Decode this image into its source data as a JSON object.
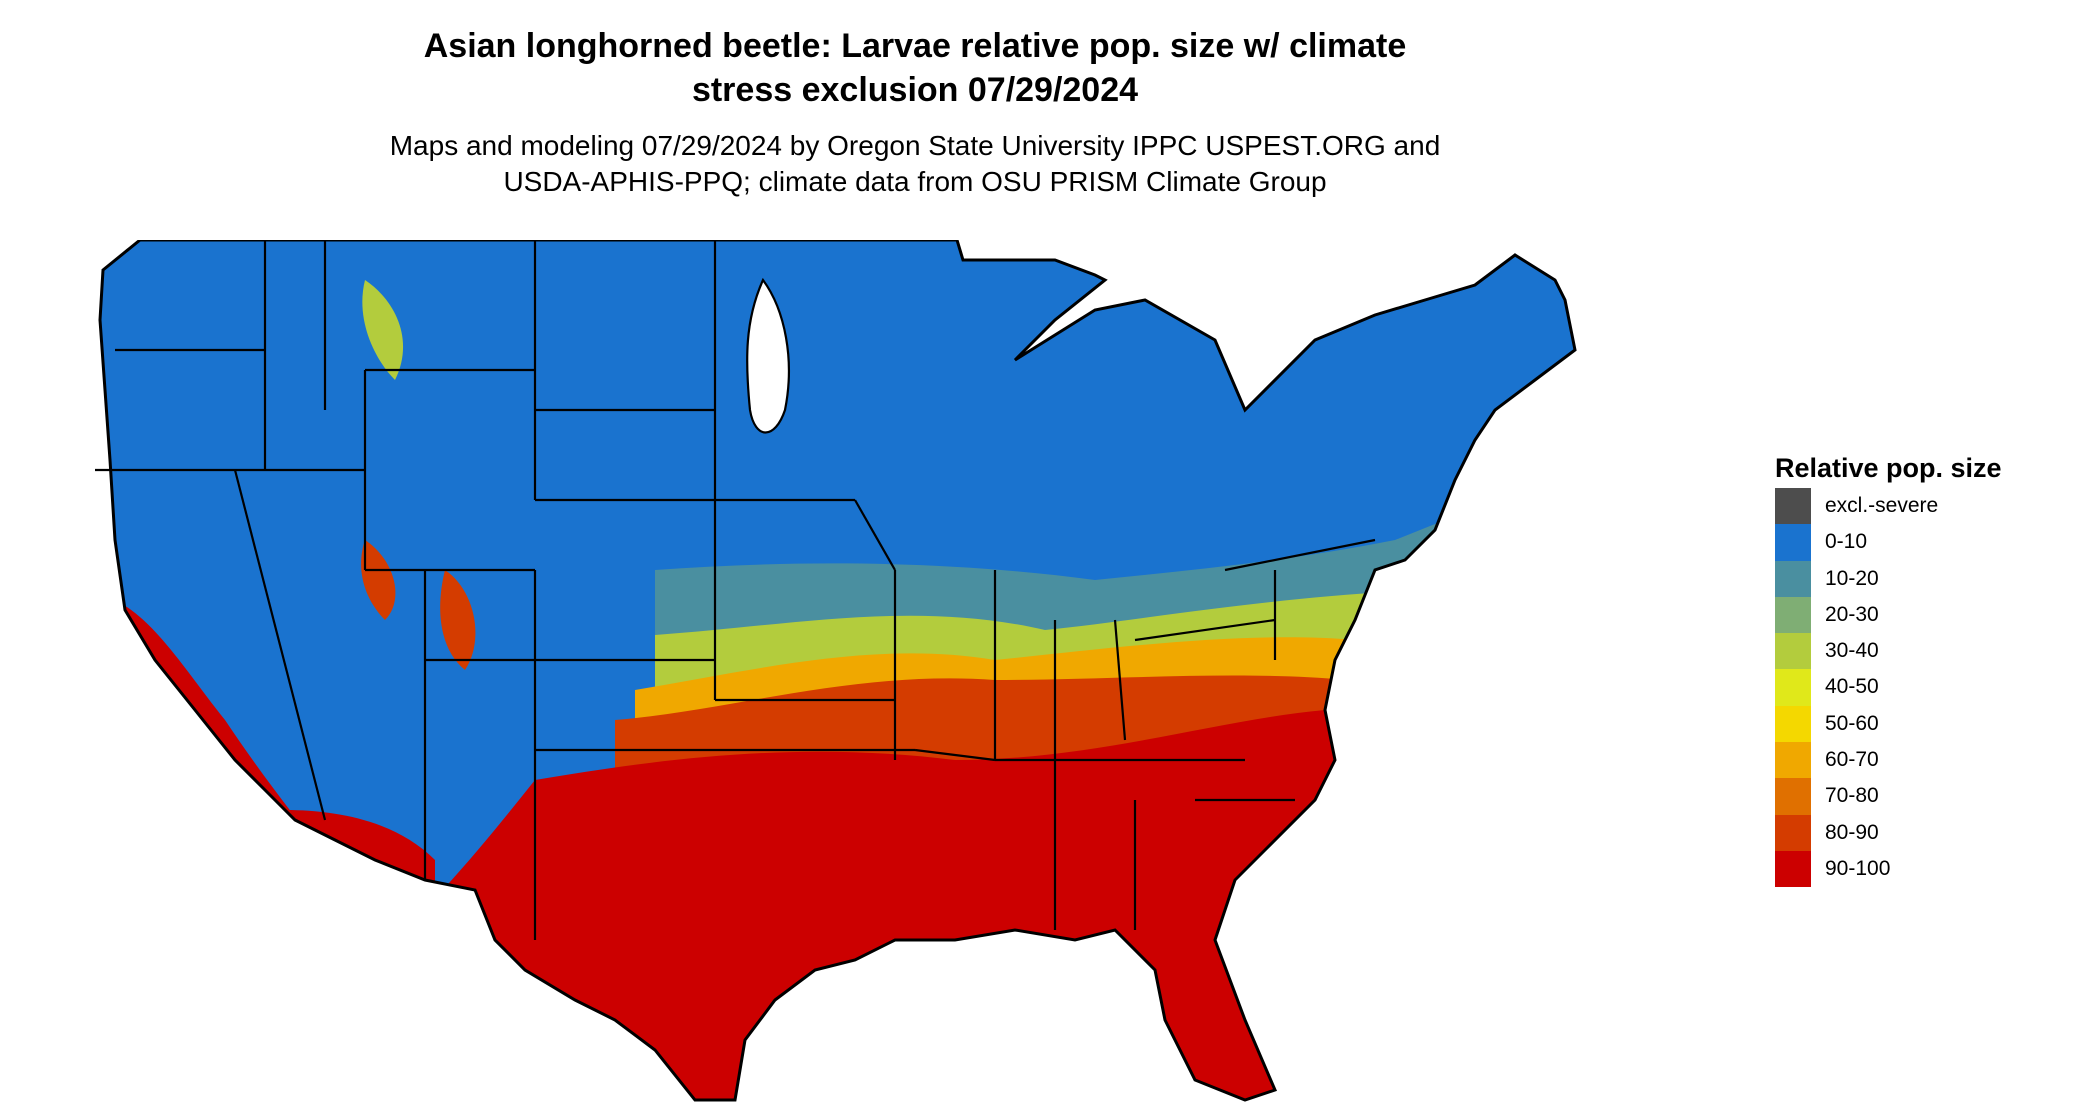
{
  "title": {
    "line1": "Asian longhorned beetle: Larvae relative pop. size w/ climate",
    "line2": "stress exclusion 07/29/2024"
  },
  "subtitle": {
    "line1": "Maps and modeling 07/29/2024 by Oregon State University IPPC USPEST.ORG and",
    "line2": "USDA-APHIS-PPQ; climate data from OSU PRISM Climate Group"
  },
  "legend": {
    "title": "Relative pop. size",
    "items": [
      {
        "label": "excl.-severe",
        "color": "#4d4d4d"
      },
      {
        "label": "0-10",
        "color": "#1a73cf"
      },
      {
        "label": "10-20",
        "color": "#4a8fa0"
      },
      {
        "label": "20-30",
        "color": "#7fae74"
      },
      {
        "label": "30-40",
        "color": "#b3cc3d"
      },
      {
        "label": "40-50",
        "color": "#e0e81a"
      },
      {
        "label": "50-60",
        "color": "#f4d800"
      },
      {
        "label": "60-70",
        "color": "#f0a800"
      },
      {
        "label": "70-80",
        "color": "#e07000"
      },
      {
        "label": "80-90",
        "color": "#d43c00"
      },
      {
        "label": "90-100",
        "color": "#cc0000"
      }
    ]
  },
  "map": {
    "colors": {
      "excluded": "#4d4d4d",
      "low": "#1a73cf",
      "lowmid": "#4a8fa0",
      "mid": "#b3cc3d",
      "midhigh": "#f0a800",
      "high": "#d43c00",
      "highest": "#cc0000",
      "border": "#000000"
    }
  }
}
